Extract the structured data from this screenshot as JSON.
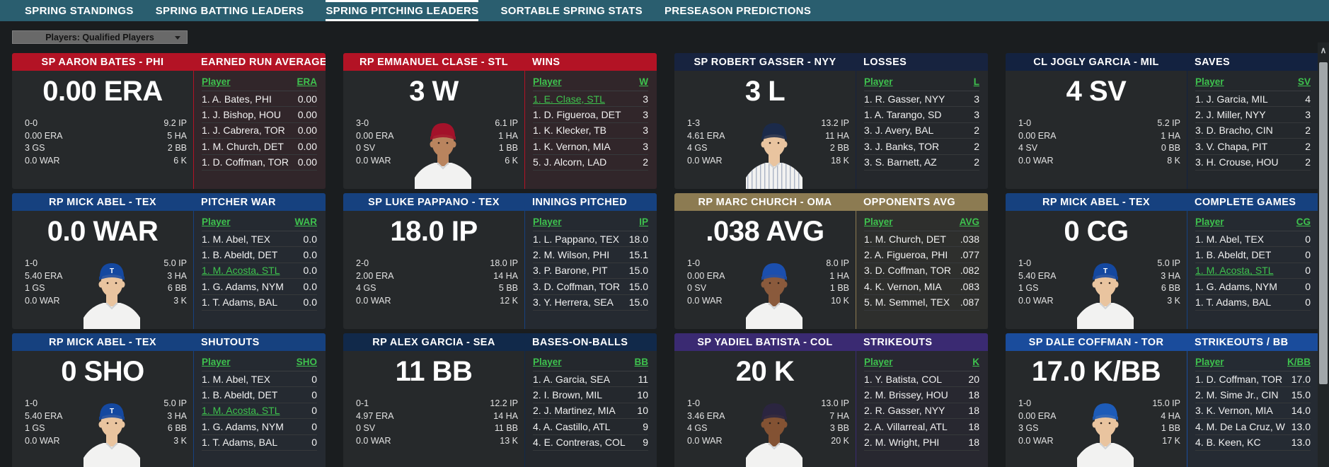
{
  "nav": {
    "active_index": 2,
    "tabs": [
      {
        "label": "SPRING STANDINGS"
      },
      {
        "label": "SPRING BATTING LEADERS"
      },
      {
        "label": "SPRING PITCHING LEADERS"
      },
      {
        "label": "SORTABLE SPRING STATS"
      },
      {
        "label": "PRESEASON PREDICTIONS"
      }
    ]
  },
  "filter_dropdown": {
    "label": "Players: Qualified Players"
  },
  "labels": {
    "player_col": "Player"
  },
  "colors": {
    "nav_background": "#2a5e6f",
    "page_background": "#1a1d1f",
    "card_background": "#26292b",
    "accent_green": "#3ec24e"
  },
  "scrollbar": {
    "up_glyph": "∧"
  },
  "cards": [
    {
      "header_player": "SP AARON BATES - PHI",
      "category": "EARNED RUN AVERAGE",
      "team_color": "#b31325",
      "team_rgb": "179,19,37",
      "big_stat": "0.00 ERA",
      "stat_label": "ERA",
      "stats_left": [
        "0-0",
        "0.00 ERA",
        "3 GS",
        "0.0 WAR"
      ],
      "stats_right": [
        "9.2 IP",
        "5 HA",
        "2 BB",
        "6 K"
      ],
      "photo": null,
      "leaders": [
        {
          "name": "1. A. Bates, PHI",
          "value": "0.00"
        },
        {
          "name": "1. J. Bishop, HOU",
          "value": "0.00"
        },
        {
          "name": "1. J. Cabrera, TOR",
          "value": "0.00"
        },
        {
          "name": "1. M. Church, DET",
          "value": "0.00"
        },
        {
          "name": "1. D. Coffman, TOR",
          "value": "0.00"
        }
      ]
    },
    {
      "header_player": "RP EMMANUEL CLASE - STL",
      "category": "WINS",
      "team_color": "#b31325",
      "team_rgb": "179,19,37",
      "big_stat": "3 W",
      "stat_label": "W",
      "stats_left": [
        "3-0",
        "0.00 ERA",
        "0 SV",
        "0.0 WAR"
      ],
      "stats_right": [
        "6.1 IP",
        "1 HA",
        "1 BB",
        "6 K"
      ],
      "photo": {
        "cap": "#a3122a",
        "skin": "#b9845e"
      },
      "leaders": [
        {
          "name": "1. E. Clase, STL",
          "value": "3",
          "highlight": true
        },
        {
          "name": "1. D. Figueroa, DET",
          "value": "3"
        },
        {
          "name": "1. K. Klecker, TB",
          "value": "3"
        },
        {
          "name": "1. K. Vernon, MIA",
          "value": "3"
        },
        {
          "name": "5. J. Alcorn, LAD",
          "value": "2"
        }
      ]
    },
    {
      "header_player": "SP ROBERT GASSER - NYY",
      "category": "LOSSES",
      "team_color": "#17233f",
      "team_rgb": "23,35,63",
      "big_stat": "3 L",
      "stat_label": "L",
      "stats_left": [
        "1-3",
        "4.61 ERA",
        "4 GS",
        "0.0 WAR"
      ],
      "stats_right": [
        "13.2 IP",
        "11 HA",
        "2 BB",
        "18 K"
      ],
      "photo": {
        "cap": "#1b2a4a",
        "skin": "#e9c49f",
        "pinstripes": true
      },
      "leaders": [
        {
          "name": "1. R. Gasser, NYY",
          "value": "3"
        },
        {
          "name": "1. A. Tarango, SD",
          "value": "3"
        },
        {
          "name": "3. J. Avery, BAL",
          "value": "2"
        },
        {
          "name": "3. J. Banks, TOR",
          "value": "2"
        },
        {
          "name": "3. S. Barnett, AZ",
          "value": "2"
        }
      ]
    },
    {
      "header_player": "CL JOGLY GARCIA - MIL",
      "category": "SAVES",
      "team_color": "#132240",
      "team_rgb": "19,34,64",
      "big_stat": "4 SV",
      "stat_label": "SV",
      "stats_left": [
        "1-0",
        "0.00 ERA",
        "4 SV",
        "0.0 WAR"
      ],
      "stats_right": [
        "5.2 IP",
        "1 HA",
        "0 BB",
        "8 K"
      ],
      "photo": null,
      "leaders": [
        {
          "name": "1. J. Garcia, MIL",
          "value": "4"
        },
        {
          "name": "2. J. Miller, NYY",
          "value": "3"
        },
        {
          "name": "3. D. Bracho, CIN",
          "value": "2"
        },
        {
          "name": "3. V. Chapa, PIT",
          "value": "2"
        },
        {
          "name": "3. H. Crouse, HOU",
          "value": "2"
        }
      ]
    },
    {
      "header_player": "RP MICK ABEL - TEX",
      "category": "PITCHER WAR",
      "team_color": "#16417f",
      "team_rgb": "22,65,127",
      "big_stat": "0.0 WAR",
      "stat_label": "WAR",
      "stats_left": [
        "1-0",
        "5.40 ERA",
        "1 GS",
        "0.0 WAR"
      ],
      "stats_right": [
        "5.0 IP",
        "3 HA",
        "6 BB",
        "3 K"
      ],
      "photo": {
        "cap": "#1448a0",
        "skin": "#e9c49f",
        "letter": "T"
      },
      "leaders": [
        {
          "name": "1. M. Abel, TEX",
          "value": "0.0"
        },
        {
          "name": "1. B. Abeldt, DET",
          "value": "0.0"
        },
        {
          "name": "1. M. Acosta, STL",
          "value": "0.0",
          "highlight": true
        },
        {
          "name": "1. G. Adams, NYM",
          "value": "0.0"
        },
        {
          "name": "1. T. Adams, BAL",
          "value": "0.0"
        }
      ]
    },
    {
      "header_player": "SP LUKE PAPPANO - TEX",
      "category": "INNINGS PITCHED",
      "team_color": "#16417f",
      "team_rgb": "22,65,127",
      "big_stat": "18.0 IP",
      "stat_label": "IP",
      "stats_left": [
        "2-0",
        "2.00 ERA",
        "4 GS",
        "0.0 WAR"
      ],
      "stats_right": [
        "18.0 IP",
        "14 HA",
        "5 BB",
        "12 K"
      ],
      "photo": null,
      "leaders": [
        {
          "name": "1. L. Pappano, TEX",
          "value": "18.0"
        },
        {
          "name": "2. M. Wilson, PHI",
          "value": "15.1"
        },
        {
          "name": "3. P. Barone, PIT",
          "value": "15.0"
        },
        {
          "name": "3. D. Coffman, TOR",
          "value": "15.0"
        },
        {
          "name": "3. Y. Herrera, SEA",
          "value": "15.0"
        }
      ]
    },
    {
      "header_player": "RP MARC CHURCH - OMA",
      "category": "OPPONENTS AVG",
      "team_color": "#8c7b52",
      "team_rgb": "140,123,82",
      "big_stat": ".038 AVG",
      "stat_label": "AVG",
      "stats_left": [
        "1-0",
        "0.00 ERA",
        "0 SV",
        "0.0 WAR"
      ],
      "stats_right": [
        "8.0 IP",
        "1 HA",
        "1 BB",
        "10 K"
      ],
      "photo": {
        "cap": "#1b4fae",
        "skin": "#8a5a3c"
      },
      "leaders": [
        {
          "name": "1. M. Church, DET",
          "value": ".038"
        },
        {
          "name": "2. A. Figueroa, PHI",
          "value": ".077"
        },
        {
          "name": "3. D. Coffman, TOR",
          "value": ".082"
        },
        {
          "name": "4. K. Vernon, MIA",
          "value": ".083"
        },
        {
          "name": "5. M. Semmel, TEX",
          "value": ".087"
        }
      ]
    },
    {
      "header_player": "RP MICK ABEL - TEX",
      "category": "COMPLETE GAMES",
      "team_color": "#16417f",
      "team_rgb": "22,65,127",
      "big_stat": "0 CG",
      "stat_label": "CG",
      "stats_left": [
        "1-0",
        "5.40 ERA",
        "1 GS",
        "0.0 WAR"
      ],
      "stats_right": [
        "5.0 IP",
        "3 HA",
        "6 BB",
        "3 K"
      ],
      "photo": {
        "cap": "#1448a0",
        "skin": "#e9c49f",
        "letter": "T"
      },
      "leaders": [
        {
          "name": "1. M. Abel, TEX",
          "value": "0"
        },
        {
          "name": "1. B. Abeldt, DET",
          "value": "0"
        },
        {
          "name": "1. M. Acosta, STL",
          "value": "0",
          "highlight": true
        },
        {
          "name": "1. G. Adams, NYM",
          "value": "0"
        },
        {
          "name": "1. T. Adams, BAL",
          "value": "0"
        }
      ]
    },
    {
      "header_player": "RP MICK ABEL - TEX",
      "category": "SHUTOUTS",
      "team_color": "#16417f",
      "team_rgb": "22,65,127",
      "big_stat": "0 SHO",
      "stat_label": "SHO",
      "stats_left": [
        "1-0",
        "5.40 ERA",
        "1 GS",
        "0.0 WAR"
      ],
      "stats_right": [
        "5.0 IP",
        "3 HA",
        "6 BB",
        "3 K"
      ],
      "photo": {
        "cap": "#1448a0",
        "skin": "#e9c49f",
        "letter": "T"
      },
      "leaders": [
        {
          "name": "1. M. Abel, TEX",
          "value": "0"
        },
        {
          "name": "1. B. Abeldt, DET",
          "value": "0"
        },
        {
          "name": "1. M. Acosta, STL",
          "value": "0",
          "highlight": true
        },
        {
          "name": "1. G. Adams, NYM",
          "value": "0"
        },
        {
          "name": "1. T. Adams, BAL",
          "value": "0"
        }
      ]
    },
    {
      "header_player": "RP ALEX GARCIA - SEA",
      "category": "BASES-ON-BALLS",
      "team_color": "#11294a",
      "team_rgb": "17,41,74",
      "big_stat": "11 BB",
      "stat_label": "BB",
      "stats_left": [
        "0-1",
        "4.97 ERA",
        "0 SV",
        "0.0 WAR"
      ],
      "stats_right": [
        "12.2 IP",
        "14 HA",
        "11 BB",
        "13 K"
      ],
      "photo": null,
      "leaders": [
        {
          "name": "1. A. Garcia, SEA",
          "value": "11"
        },
        {
          "name": "2. I. Brown, MIL",
          "value": "10"
        },
        {
          "name": "2. J. Martinez, MIA",
          "value": "10"
        },
        {
          "name": "4. A. Castillo, ATL",
          "value": "9"
        },
        {
          "name": "4. E. Contreras, COL",
          "value": "9"
        }
      ]
    },
    {
      "header_player": "SP YADIEL BATISTA - COL",
      "category": "STRIKEOUTS",
      "team_color": "#3a2a72",
      "team_rgb": "58,42,114",
      "big_stat": "20 K",
      "stat_label": "K",
      "stats_left": [
        "1-0",
        "3.46 ERA",
        "4 GS",
        "0.0 WAR"
      ],
      "stats_right": [
        "13.0 IP",
        "7 HA",
        "3 BB",
        "20 K"
      ],
      "photo": {
        "cap": "#2b2540",
        "skin": "#835233"
      },
      "leaders": [
        {
          "name": "1. Y. Batista, COL",
          "value": "20"
        },
        {
          "name": "2. M. Brissey, HOU",
          "value": "18"
        },
        {
          "name": "2. R. Gasser, NYY",
          "value": "18"
        },
        {
          "name": "2. A. Villarreal, ATL",
          "value": "18"
        },
        {
          "name": "2. M. Wright, PHI",
          "value": "18"
        }
      ]
    },
    {
      "header_player": "SP DALE COFFMAN - TOR",
      "category": "STRIKEOUTS / BB",
      "team_color": "#1a4c9c",
      "team_rgb": "26,76,156",
      "big_stat": "17.0 K/BB",
      "stat_label": "K/BB",
      "stats_left": [
        "1-0",
        "0.00 ERA",
        "3 GS",
        "0.0 WAR"
      ],
      "stats_right": [
        "15.0 IP",
        "4 HA",
        "1 BB",
        "17 K"
      ],
      "photo": {
        "cap": "#1d5bb8",
        "skin": "#e9c49f"
      },
      "leaders": [
        {
          "name": "1. D. Coffman, TOR",
          "value": "17.0"
        },
        {
          "name": "2. M. Sime Jr., CIN",
          "value": "15.0"
        },
        {
          "name": "3. K. Vernon, MIA",
          "value": "14.0"
        },
        {
          "name": "4. M. De La Cruz, W",
          "value": "13.0"
        },
        {
          "name": "4. B. Keen, KC",
          "value": "13.0"
        }
      ]
    }
  ]
}
